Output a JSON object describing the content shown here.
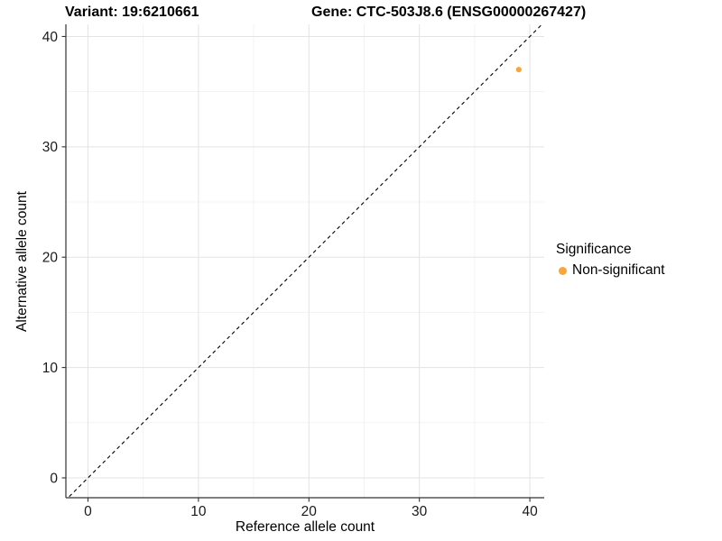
{
  "titles": {
    "variant": "Variant: 19:6210661",
    "gene": "Gene: CTC-503J8.6 (ENSG00000267427)"
  },
  "legend": {
    "title": "Significance",
    "items": [
      {
        "label": "Non-significant",
        "color": "#FAA43A"
      }
    ]
  },
  "chart_data": {
    "type": "scatter",
    "title": "Variant: 19:6210661   Gene: CTC-503J8.6 (ENSG00000267427)",
    "xlabel": "Reference allele count",
    "ylabel": "Alternative allele count",
    "xlim": [
      -2,
      41.3
    ],
    "ylim": [
      -1.8,
      41.1
    ],
    "x_ticks": [
      0,
      10,
      20,
      30,
      40
    ],
    "y_ticks": [
      0,
      10,
      20,
      30,
      40
    ],
    "x_minor_ticks": [
      5,
      15,
      25,
      35
    ],
    "y_minor_ticks": [
      5,
      15,
      25,
      35
    ],
    "grid": true,
    "legend_position": "right",
    "reference_line": {
      "type": "identity",
      "slope": 1,
      "intercept": 0,
      "style": "dashed",
      "color": "#000000"
    },
    "series": [
      {
        "name": "Non-significant",
        "color": "#FAA43A",
        "points": [
          {
            "x": 39,
            "y": 37
          }
        ]
      }
    ],
    "colors": {
      "grid_major": "#E3E3E3",
      "grid_minor": "#F0F0F0",
      "axis_line": "#333333",
      "tick_label": "#1a1a1a"
    }
  }
}
